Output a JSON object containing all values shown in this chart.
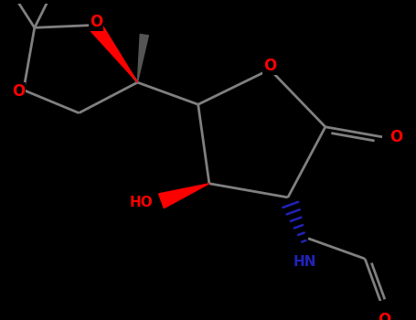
{
  "background_color": "#000000",
  "oxygen_color": "#ff0000",
  "nitrogen_color": "#2222bb",
  "bond_color": "#808080",
  "bond_lw": 2.0,
  "figsize": [
    4.55,
    3.5
  ],
  "dpi": 100,
  "xlim": [
    -1.1,
    1.35
  ],
  "ylim": [
    -0.95,
    0.8
  ]
}
